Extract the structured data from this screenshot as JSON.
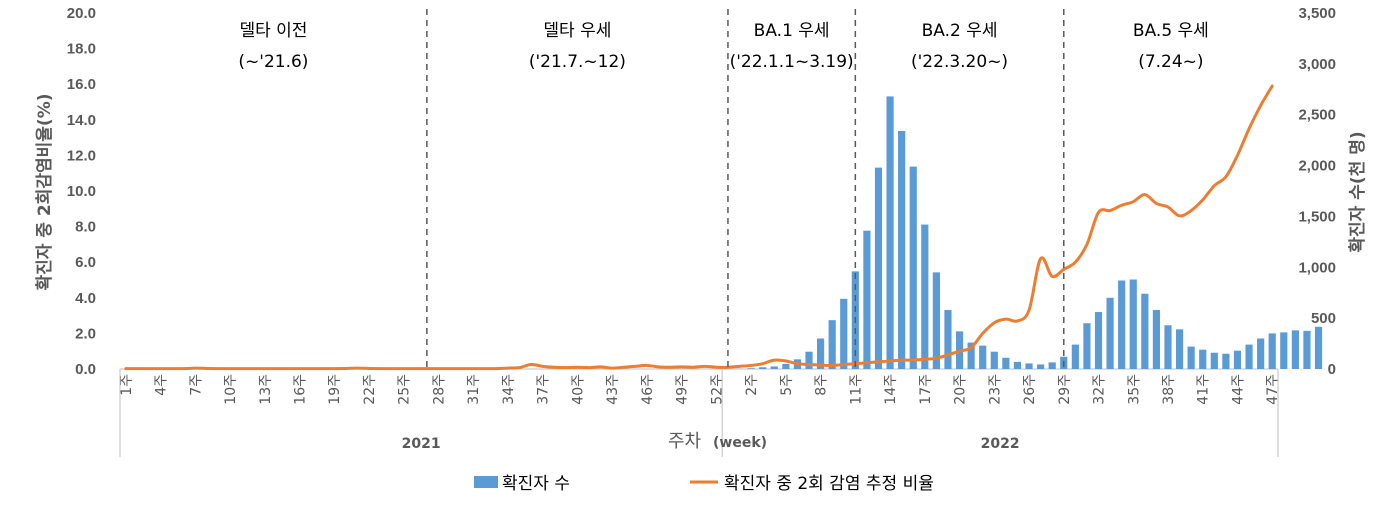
{
  "chart_data": {
    "type": "bar-line-combo",
    "xlabel": "주차",
    "xlabel_suffix": "(week)",
    "ylabel_left": "확진자 중 2회감염비율(%)",
    "ylabel_right": "확진자 수(천 명)",
    "ylim_left": [
      0,
      20
    ],
    "ylim_right": [
      0,
      3500
    ],
    "yticks_left": [
      "0.0",
      "2.0",
      "4.0",
      "6.0",
      "8.0",
      "10.0",
      "12.0",
      "14.0",
      "16.0",
      "18.0",
      "20.0"
    ],
    "yticks_right": [
      "0",
      "500",
      "1,000",
      "1,500",
      "2,000",
      "2,500",
      "3,000",
      "3,500"
    ],
    "x_tick_labels": [
      "1주",
      "4주",
      "7주",
      "10주",
      "13주",
      "16주",
      "19주",
      "22주",
      "25주",
      "28주",
      "31주",
      "34주",
      "37주",
      "40주",
      "43주",
      "46주",
      "49주",
      "52주",
      "2주",
      "5주",
      "8주",
      "11주",
      "14주",
      "17주",
      "20주",
      "23주",
      "26주",
      "29주",
      "32주",
      "35주",
      "38주",
      "41주",
      "44주",
      "47주"
    ],
    "years": [
      {
        "label": "2021",
        "weeks": 52
      },
      {
        "label": "2022",
        "weeks": 48
      }
    ],
    "phases": [
      {
        "title": "델타 이전",
        "period": "(~'21.6)"
      },
      {
        "title": "델타 우세",
        "period": "('21.7.~12)"
      },
      {
        "title": "BA.1 우세",
        "period": "('22.1.1~3.19)"
      },
      {
        "title": "BA.2 우세",
        "period": "('22.3.20~)"
      },
      {
        "title": "BA.5 우세",
        "period": "(7.24~)"
      }
    ],
    "phase_boundaries_week": [
      26.5,
      52.5,
      63.5,
      81.5
    ],
    "series": [
      {
        "name": "확진자 수",
        "type": "bar",
        "axis": "right",
        "color": "#5b9bd5",
        "start_week": 53,
        "values": [
          0,
          2,
          8,
          17,
          25,
          50,
          95,
          170,
          300,
          480,
          690,
          960,
          1360,
          1980,
          2680,
          2340,
          1990,
          1420,
          950,
          580,
          370,
          260,
          230,
          170,
          110,
          70,
          55,
          45,
          65,
          120,
          240,
          450,
          560,
          700,
          870,
          880,
          740,
          580,
          430,
          390,
          220,
          190,
          160,
          150,
          180,
          240,
          300,
          350,
          360,
          380,
          375,
          415
        ]
      },
      {
        "name": "확진자 중 2회 감염 추정 비율",
        "type": "line",
        "axis": "left",
        "color": "#ed7d31",
        "values": [
          0.02,
          0.02,
          0.02,
          0.02,
          0.02,
          0.02,
          0.05,
          0.03,
          0.02,
          0.02,
          0.02,
          0.02,
          0.02,
          0.02,
          0.02,
          0.02,
          0.02,
          0.02,
          0.02,
          0.03,
          0.05,
          0.03,
          0.02,
          0.02,
          0.02,
          0.02,
          0.02,
          0.02,
          0.02,
          0.02,
          0.02,
          0.02,
          0.02,
          0.05,
          0.08,
          0.25,
          0.15,
          0.1,
          0.08,
          0.1,
          0.08,
          0.12,
          0.05,
          0.1,
          0.15,
          0.2,
          0.12,
          0.1,
          0.12,
          0.1,
          0.15,
          0.1,
          0.1,
          0.15,
          0.2,
          0.3,
          0.5,
          0.45,
          0.3,
          0.25,
          0.22,
          0.2,
          0.25,
          0.3,
          0.35,
          0.4,
          0.45,
          0.5,
          0.5,
          0.55,
          0.6,
          0.8,
          1.0,
          1.2,
          2.0,
          2.6,
          2.8,
          2.7,
          3.3,
          6.2,
          5.2,
          5.6,
          6.0,
          7.0,
          8.8,
          8.9,
          9.2,
          9.4,
          9.8,
          9.3,
          9.1,
          8.6,
          8.9,
          9.5,
          10.3,
          10.8,
          12.0,
          13.5,
          14.8,
          15.9
        ]
      }
    ]
  }
}
